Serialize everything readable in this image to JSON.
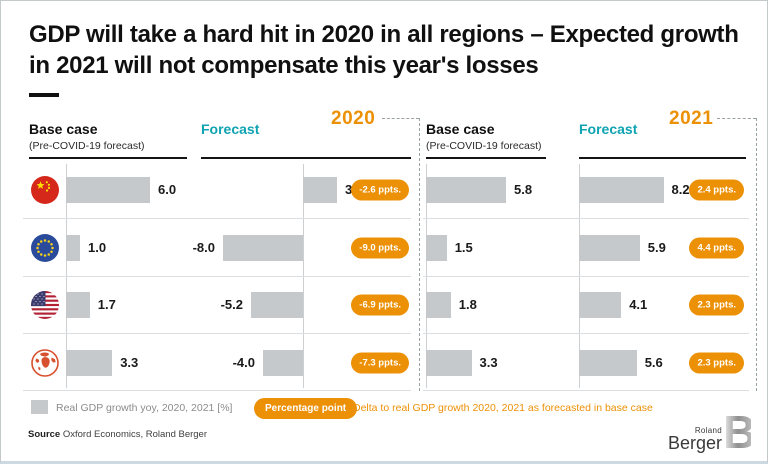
{
  "title": "GDP will take a hard hit in 2020 in all regions – Expected growth in 2021 will not compensate this year's losses",
  "columns": {
    "base_case_label": "Base case",
    "base_case_sublabel": "(Pre-COVID-19 forecast)",
    "forecast_label": "Forecast",
    "year_2020": "2020",
    "year_2021": "2021"
  },
  "chart_data": {
    "type": "bar",
    "title": "GDP will take a hard hit in 2020 in all regions – Expected growth in 2021 will not compensate this year's losses",
    "categories": [
      "China",
      "European Union",
      "United States",
      "World"
    ],
    "series": [
      {
        "name": "2020 Base case (Pre-COVID-19 forecast)",
        "values": [
          6.0,
          1.0,
          1.7,
          3.3
        ]
      },
      {
        "name": "2020 Forecast",
        "values": [
          3.4,
          -8.0,
          -5.2,
          -4.0
        ],
        "delta_ppts": [
          -2.6,
          -9.0,
          -6.9,
          -7.3
        ]
      },
      {
        "name": "2021 Base case (Pre-COVID-19 forecast)",
        "values": [
          5.8,
          1.5,
          1.8,
          3.3
        ]
      },
      {
        "name": "2021 Forecast",
        "values": [
          8.2,
          5.9,
          4.1,
          5.6
        ],
        "delta_ppts": [
          2.4,
          4.4,
          2.3,
          2.3
        ]
      }
    ],
    "value_unit": "Real GDP growth yoy, 2020, 2021 [%]",
    "delta_unit": "Percentage point",
    "orientation": "horizontal",
    "legend_position": "bottom"
  },
  "rows": [
    {
      "region": "China",
      "base_2020": "6.0",
      "forecast_2020": "3.4",
      "delta_2020": "-2.6 ppts.",
      "base_2021": "5.8",
      "forecast_2021": "8.2",
      "delta_2021": "2.4 ppts."
    },
    {
      "region": "European Union",
      "base_2020": "1.0",
      "forecast_2020": "-8.0",
      "delta_2020": "-9.0 ppts.",
      "base_2021": "1.5",
      "forecast_2021": "5.9",
      "delta_2021": "4.4 ppts."
    },
    {
      "region": "United States",
      "base_2020": "1.7",
      "forecast_2020": "-5.2",
      "delta_2020": "-6.9 ppts.",
      "base_2021": "1.8",
      "forecast_2021": "4.1",
      "delta_2021": "2.3 ppts."
    },
    {
      "region": "World",
      "base_2020": "3.3",
      "forecast_2020": "-4.0",
      "delta_2020": "-7.3 ppts.",
      "base_2021": "3.3",
      "forecast_2021": "5.6",
      "delta_2021": "2.3 ppts."
    }
  ],
  "legend": {
    "bar_label": "Real GDP growth yoy, 2020, 2021 [%]",
    "pill_label": "Percentage point",
    "delta_label": "Delta to real GDP growth 2020, 2021 as forecasted in base case"
  },
  "source": {
    "prefix": "Source",
    "text": " Oxford Economics, Roland Berger"
  },
  "logo": {
    "line1": "Roland",
    "line2": "Berger"
  },
  "colors": {
    "orange": "#EC9006",
    "teal": "#0FA3B2",
    "bar_gray": "#C6C9CC"
  }
}
